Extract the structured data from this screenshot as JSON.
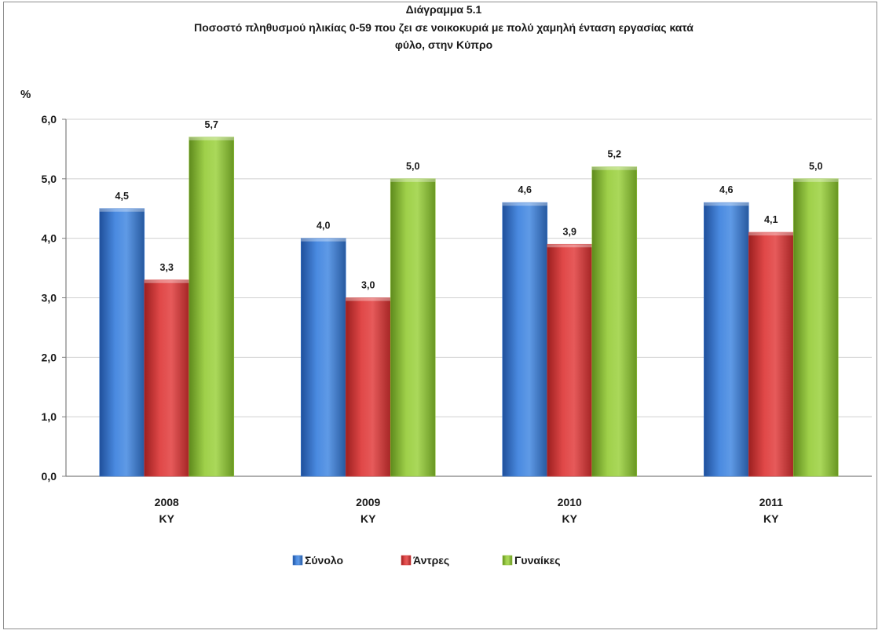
{
  "chart_data": {
    "type": "bar",
    "title": "Διάγραμμα 5.1",
    "subtitle": [
      "Ποσοστό πληθυσμού ηλικίας 0-59 που ζει σε νοικοκυριά με πολύ χαμηλή ένταση εργασίας κατά",
      "φύλο,  στην Κύπρο"
    ],
    "ylabel": "%",
    "xlabel": "",
    "ylim": [
      0,
      6
    ],
    "yticks": [
      "0,0",
      "1,0",
      "2,0",
      "3,0",
      "4,0",
      "5,0",
      "6,0"
    ],
    "categories": [
      [
        "2008",
        "ΚΥ"
      ],
      [
        "2009",
        "ΚΥ"
      ],
      [
        "2010",
        "ΚΥ"
      ],
      [
        "2011",
        "ΚΥ"
      ]
    ],
    "series": [
      {
        "name": "Σύνολο",
        "color": "#3b78cf",
        "values": [
          4.5,
          4.0,
          4.6,
          4.6
        ],
        "labels": [
          "4,5",
          "4,0",
          "4,6",
          "4,6"
        ]
      },
      {
        "name": "Άντρες",
        "color": "#d23a3a",
        "values": [
          3.3,
          3.0,
          3.9,
          4.1
        ],
        "labels": [
          "3,3",
          "3,0",
          "3,9",
          "4,1"
        ]
      },
      {
        "name": "Γυναίκες",
        "color": "#8fc23a",
        "values": [
          5.7,
          5.0,
          5.2,
          5.0
        ],
        "labels": [
          "5,7",
          "5,0",
          "5,2",
          "5,0"
        ]
      }
    ],
    "grid": true,
    "legend": "bottom"
  }
}
